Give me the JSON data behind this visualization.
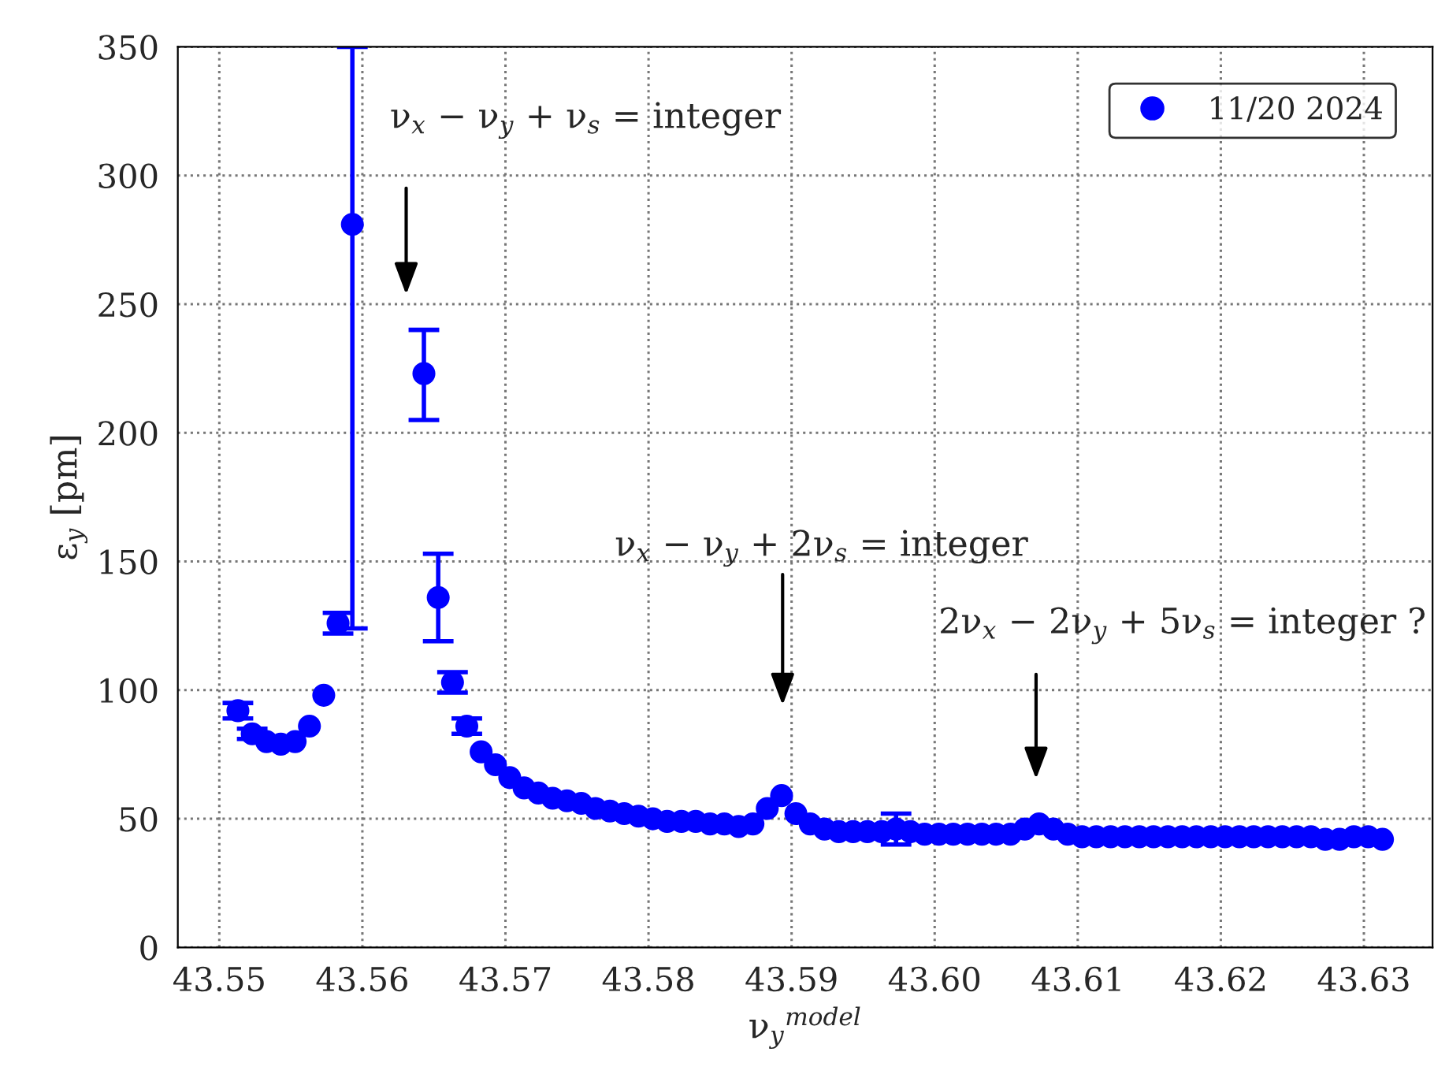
{
  "chart_data": {
    "type": "scatter",
    "xlabel": "ν$_{y}$$^{model}$",
    "ylabel": "ε$_{y}$ [pm]",
    "xlim": [
      43.5471,
      43.6348
    ],
    "ylim": [
      0,
      350
    ],
    "xticks": [
      {
        "value": 43.55,
        "label": "43.55"
      },
      {
        "value": 43.56,
        "label": "43.56"
      },
      {
        "value": 43.57,
        "label": "43.57"
      },
      {
        "value": 43.58,
        "label": "43.58"
      },
      {
        "value": 43.59,
        "label": "43.59"
      },
      {
        "value": 43.6,
        "label": "43.60"
      },
      {
        "value": 43.61,
        "label": "43.61"
      },
      {
        "value": 43.62,
        "label": "43.62"
      },
      {
        "value": 43.63,
        "label": "43.63"
      }
    ],
    "yticks": [
      0,
      50,
      100,
      150,
      200,
      250,
      300,
      350
    ],
    "grid": true,
    "legend": "top right",
    "marker": "circle",
    "series": [
      {
        "name": "11/20 2024",
        "color": "#0000ff",
        "x": [
          43.5513,
          43.5523,
          43.5533,
          43.5543,
          43.5553,
          43.5563,
          43.5573,
          43.5583,
          43.5593,
          43.5643,
          43.5653,
          43.5663,
          43.5673,
          43.5683,
          43.5693,
          43.5703,
          43.5713,
          43.5723,
          43.5733,
          43.5743,
          43.5753,
          43.5763,
          43.5773,
          43.5783,
          43.5793,
          43.5803,
          43.5813,
          43.5823,
          43.5833,
          43.5843,
          43.5853,
          43.5863,
          43.5873,
          43.5883,
          43.5893,
          43.5903,
          43.5913,
          43.5923,
          43.5933,
          43.5943,
          43.5953,
          43.5963,
          43.5973,
          43.5983,
          43.5993,
          43.6003,
          43.6013,
          43.6023,
          43.6033,
          43.6043,
          43.6053,
          43.6063,
          43.6073,
          43.6083,
          43.6093,
          43.6103,
          43.6113,
          43.6123,
          43.6133,
          43.6143,
          43.6153,
          43.6163,
          43.6173,
          43.6183,
          43.6193,
          43.6203,
          43.6213,
          43.6223,
          43.6233,
          43.6243,
          43.6253,
          43.6263,
          43.6273,
          43.6283,
          43.6293,
          43.6303,
          43.6313
        ],
        "values": [
          92,
          83,
          80,
          79,
          80,
          86,
          98,
          126,
          281,
          223,
          136,
          103,
          86,
          76,
          71,
          66,
          62,
          60,
          58,
          57,
          56,
          54,
          53,
          52,
          51,
          50,
          49,
          49,
          49,
          48,
          48,
          47,
          48,
          54,
          59,
          52,
          48,
          46,
          45,
          45,
          45,
          45,
          46,
          45,
          44,
          44,
          44,
          44,
          44,
          44,
          44,
          46,
          48,
          46,
          44,
          43,
          43,
          43,
          43,
          43,
          43,
          43,
          43,
          43,
          43,
          43,
          43,
          43,
          43,
          43,
          43,
          43,
          42,
          42,
          43,
          43,
          42
        ],
        "errors": [
          3,
          2,
          null,
          null,
          null,
          null,
          null,
          4,
          [
            124,
            350
          ],
          [
            205,
            240
          ],
          [
            119,
            153
          ],
          4,
          3,
          null,
          null,
          null,
          null,
          null,
          null,
          null,
          null,
          null,
          null,
          null,
          null,
          null,
          null,
          null,
          null,
          null,
          null,
          null,
          null,
          null,
          null,
          null,
          null,
          null,
          null,
          null,
          null,
          null,
          6,
          null,
          null,
          null,
          null,
          null,
          null,
          null,
          null,
          null,
          null,
          null,
          null,
          null,
          null,
          null,
          null,
          null,
          null,
          null,
          null,
          null,
          null,
          null,
          null,
          null,
          null,
          null,
          null,
          null,
          null,
          null,
          null,
          null,
          null
        ]
      }
    ],
    "annotations": [
      "ν$_{x}$ − ν$_{y}$ + ν$_{s}$ = integer",
      "ν$_{x}$ − ν$_{y}$ + 2ν$_{s}$ = integer",
      "2ν$_{x}$ − 2ν$_{y}$ + 5ν$_{s}$ = integer ?"
    ]
  }
}
